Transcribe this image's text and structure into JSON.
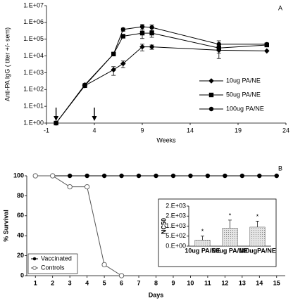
{
  "chart_data": [
    {
      "type": "line",
      "panel_label": "A",
      "xlabel": "Weeks",
      "ylabel": "Anti-PA IgG ( titer +/- sem)",
      "log_y": true,
      "x": [
        0,
        3,
        6,
        7,
        9,
        10,
        17,
        22
      ],
      "xlim": [
        -1,
        24
      ],
      "xticks": [
        -1,
        4,
        9,
        14,
        19,
        24
      ],
      "ylim": [
        1,
        10000000
      ],
      "yticks": [
        {
          "value": 1,
          "label": "1.E+00"
        },
        {
          "value": 10,
          "label": "1.E+01"
        },
        {
          "value": 100,
          "label": "1.E+02"
        },
        {
          "value": 1000,
          "label": "1.E+03"
        },
        {
          "value": 10000,
          "label": "1.E+04"
        },
        {
          "value": 100000,
          "label": "1.E+05"
        },
        {
          "value": 1000000,
          "label": "1.E+06"
        },
        {
          "value": 10000000,
          "label": "1.E+07"
        }
      ],
      "arrows_x": [
        0,
        4
      ],
      "series": [
        {
          "name": "10ug PA/NE",
          "color": "#000000",
          "marker": "diamond",
          "values": [
            1,
            170,
            1500,
            3500,
            35000,
            35000,
            22000,
            20000
          ],
          "errors": [
            0,
            0,
            800,
            1500,
            15000,
            10000,
            15000,
            0
          ]
        },
        {
          "name": "50ug PA/NE",
          "color": "#000000",
          "marker": "square",
          "values": [
            1,
            170,
            13000,
            150000,
            230000,
            230000,
            30000,
            45000
          ],
          "errors": [
            0,
            0,
            3000,
            0,
            120000,
            100000,
            15000,
            10000
          ]
        },
        {
          "name": "100ug PA/NE",
          "color": "#000000",
          "marker": "circle",
          "values": [
            1,
            190,
            13000,
            380000,
            550000,
            500000,
            50000,
            50000
          ],
          "errors": [
            0,
            0,
            3000,
            80000,
            200000,
            200000,
            30000,
            10000
          ]
        }
      ]
    },
    {
      "type": "line",
      "panel_label": "B",
      "xlabel": "Days",
      "ylabel": "% Survival",
      "x": [
        1,
        2,
        3,
        4,
        5,
        6,
        7,
        8,
        9,
        10,
        11,
        12,
        13,
        14,
        15
      ],
      "xlim": [
        0.5,
        15.5
      ],
      "xticks": [
        1,
        2,
        3,
        4,
        5,
        6,
        7,
        8,
        9,
        10,
        11,
        12,
        13,
        14,
        15
      ],
      "ylim": [
        0,
        100
      ],
      "yticks": [
        0,
        20,
        40,
        60,
        80,
        100
      ],
      "series": [
        {
          "name": "Vaccinated",
          "color": "#000000",
          "marker": "circle",
          "values": [
            100,
            100,
            100,
            100,
            100,
            100,
            100,
            100,
            100,
            100,
            100,
            100,
            100,
            100,
            100
          ]
        },
        {
          "name": "Controls",
          "color": "#555555",
          "marker": "open-circle",
          "values": [
            100,
            100,
            89,
            89,
            11,
            0,
            null,
            null,
            null,
            null,
            null,
            null,
            null,
            null,
            null
          ]
        }
      ]
    },
    {
      "type": "bar",
      "ylabel": "NC50",
      "categories": [
        "10ug PA/NE",
        "50ug PA/NE",
        "100ugPA/NE"
      ],
      "values": [
        300,
        900,
        950
      ],
      "errors": [
        200,
        400,
        300
      ],
      "annotations": [
        "*",
        "*",
        "*"
      ],
      "color": "#d8d8d8",
      "ylim": [
        0,
        2000
      ],
      "yticks": [
        {
          "value": 0,
          "label": "0.E+00"
        },
        {
          "value": 500,
          "label": "5.E+02"
        },
        {
          "value": 1000,
          "label": "1.E+03"
        },
        {
          "value": 1500,
          "label": "2.E+03"
        },
        {
          "value": 2000,
          "label": "2.E+03"
        }
      ]
    }
  ]
}
